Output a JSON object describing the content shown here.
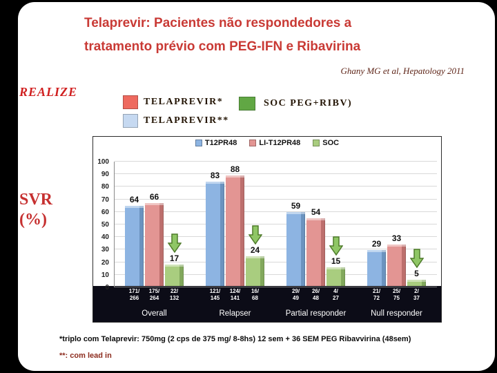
{
  "slide": {
    "title_line1": "Telaprevir: Pacientes não respondedores a",
    "title_line2": "tratamento prévio com PEG-IFN e Ribavirina",
    "citation": "Ghany MG et al, Hepatology 2011",
    "study_label": "REALIZE",
    "y_axis_label_line1": "SVR",
    "y_axis_label_line2": "(%)",
    "footnote1": "*triplo com Telaprevir: 750mg (2 cps de 375 mg/ 8-8hs) 12 sem +  36 SEM PEG Ribavvirina (48sem)",
    "footnote2": "**: com lead in"
  },
  "legend": {
    "items": [
      {
        "label": "TELAPREVIR*",
        "color": "#ee6a5f"
      },
      {
        "label": "TELAPREVIR**",
        "color": "#c6d9f1"
      },
      {
        "label": "SOC PEG+RIBV)",
        "color": "#61a744"
      }
    ]
  },
  "chart_data": {
    "type": "bar",
    "title": "",
    "xlabel": "",
    "ylabel": "SVR (%)",
    "ylim": [
      0,
      100
    ],
    "ytick_step": 10,
    "grid": true,
    "legend_position": "top",
    "categories": [
      "Overall",
      "Relapser",
      "Partial responder",
      "Null responder"
    ],
    "series": [
      {
        "name": "T12PR48",
        "color": "#8db4e2",
        "side": "#6b93bf",
        "values": [
          64,
          83,
          59,
          29
        ],
        "fractions": [
          "171/266",
          "121/145",
          "29/49",
          "21/72"
        ]
      },
      {
        "name": "LI-T12PR48",
        "color": "#e39593",
        "side": "#bd6f6d",
        "values": [
          66,
          88,
          54,
          33
        ],
        "fractions": [
          "175/264",
          "124/141",
          "26/48",
          "25/75"
        ]
      },
      {
        "name": "SOC",
        "color": "#a9cd7f",
        "side": "#82a85c",
        "values": [
          17,
          24,
          15,
          5
        ],
        "fractions": [
          "22/132",
          "16/68",
          "4/27",
          "2/37"
        ],
        "arrow": true
      }
    ],
    "arrow_fill": "#8fc665",
    "arrow_stroke": "#4e7a2a"
  }
}
